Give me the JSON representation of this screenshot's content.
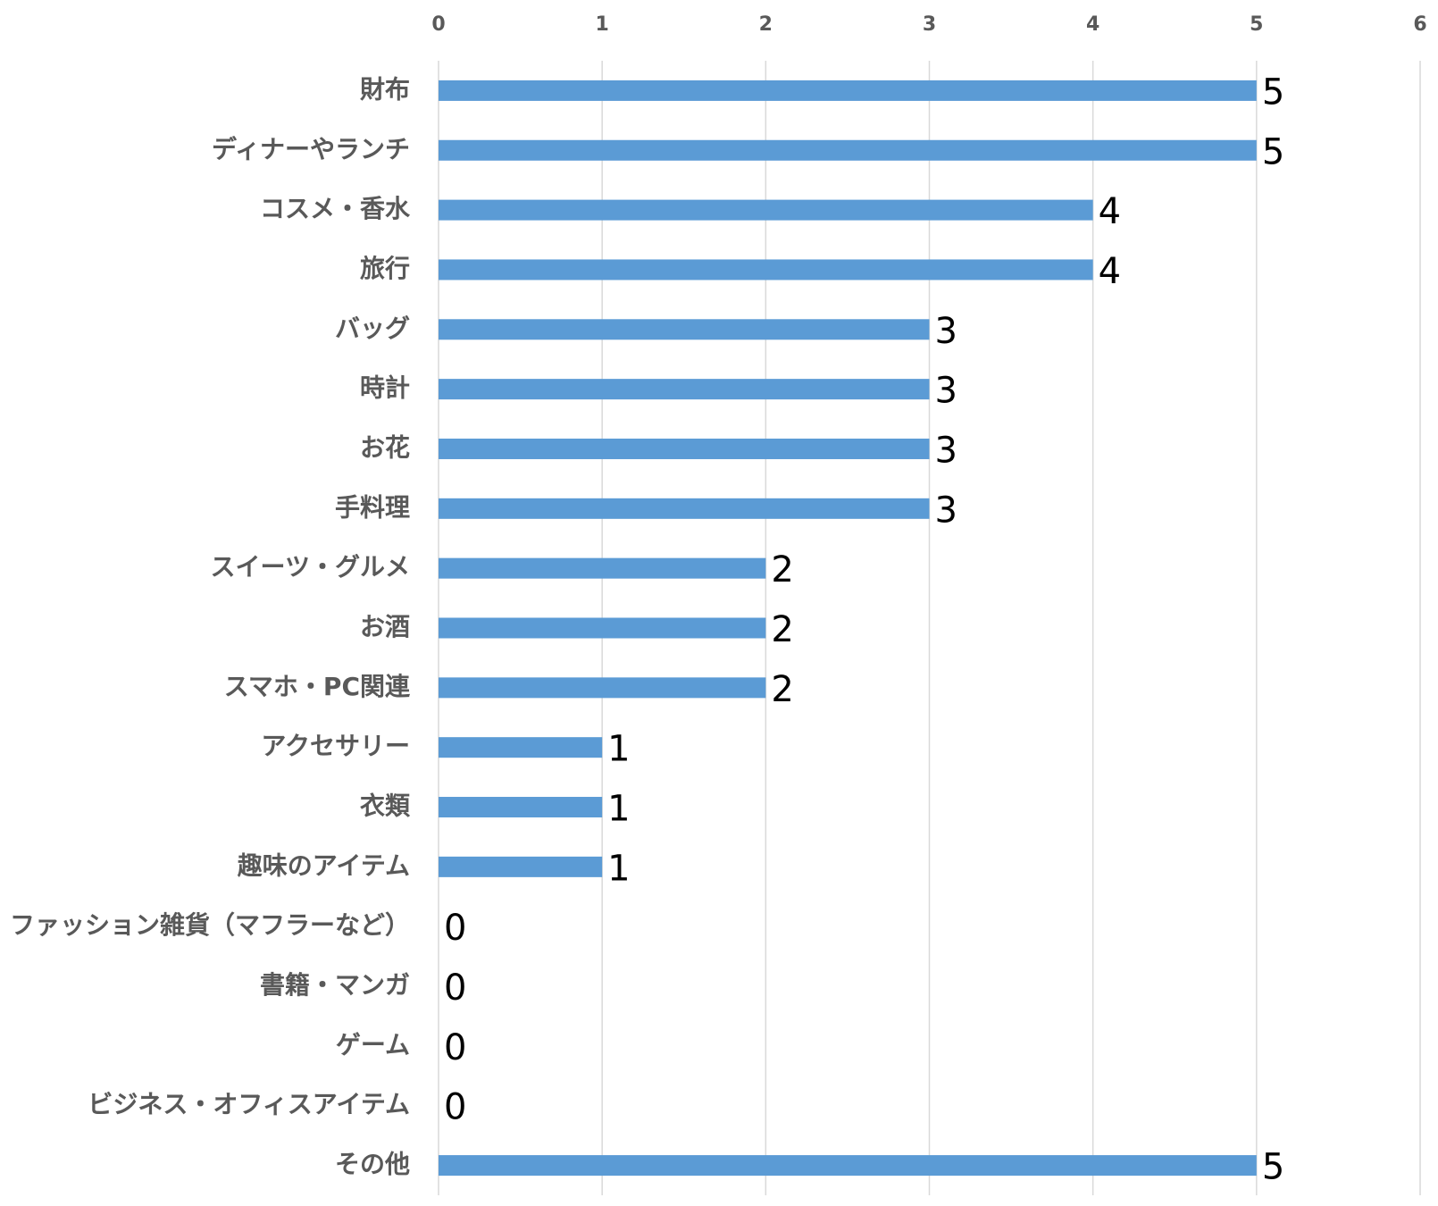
{
  "chart_data": {
    "type": "bar",
    "orientation": "horizontal",
    "categories": [
      "財布",
      "ディナーやランチ",
      "コスメ・香水",
      "旅行",
      "バッグ",
      "時計",
      "お花",
      "手料理",
      "スイーツ・グルメ",
      "お酒",
      "スマホ・PC関連",
      "アクセサリー",
      "衣類",
      "趣味のアイテム",
      "ファッション雑貨（マフラーなど）",
      "書籍・マンガ",
      "ゲーム",
      "ビジネス・オフィスアイテム",
      "その他"
    ],
    "values": [
      5,
      5,
      4,
      4,
      3,
      3,
      3,
      3,
      2,
      2,
      2,
      1,
      1,
      1,
      0,
      0,
      0,
      0,
      5
    ],
    "color": "#5b9bd5",
    "xlim": [
      0,
      6
    ],
    "xticks": [
      0,
      1,
      2,
      3,
      4,
      5,
      6
    ],
    "grid": true
  }
}
